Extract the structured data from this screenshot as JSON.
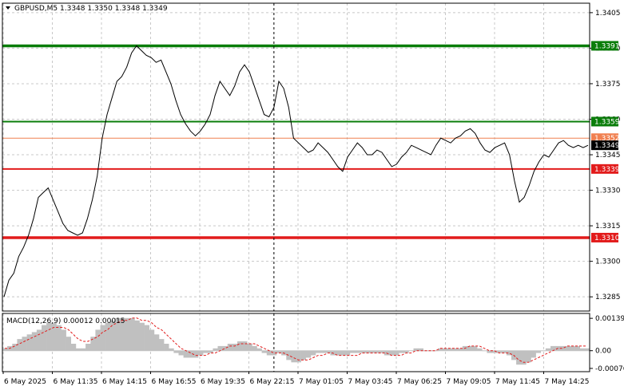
{
  "chart_data": [
    {
      "type": "line",
      "title": "GBPUSD,M5  1.3348 1.3350 1.3348 1.3349",
      "y_ticks": [
        "1.3405",
        "1.3390",
        "1.3375",
        "1.3360",
        "1.3345",
        "1.3330",
        "1.3315",
        "1.3300",
        "1.3285"
      ],
      "ylim": [
        1.3279,
        1.3409
      ],
      "x_ticks": [
        "6 May 2025",
        "6 May 11:35",
        "6 May 14:15",
        "6 May 16:55",
        "6 May 19:35",
        "6 May 22:15",
        "7 May 01:05",
        "7 May 03:45",
        "7 May 06:25",
        "7 May 09:05",
        "7 May 11:45",
        "7 May 14:25"
      ],
      "x_count": 120,
      "series": [
        {
          "values": [
            1.3285,
            1.3292,
            1.3295,
            1.3302,
            1.3306,
            1.3311,
            1.3318,
            1.3327,
            1.3329,
            1.3331,
            1.3326,
            1.3321,
            1.3316,
            1.3313,
            1.3312,
            1.3311,
            1.3312,
            1.3318,
            1.3326,
            1.3336,
            1.3352,
            1.3362,
            1.3369,
            1.3376,
            1.3378,
            1.3382,
            1.3388,
            1.3391,
            1.3389,
            1.3387,
            1.3386,
            1.3384,
            1.3385,
            1.338,
            1.3375,
            1.3368,
            1.3362,
            1.3358,
            1.3355,
            1.3353,
            1.3355,
            1.3358,
            1.3362,
            1.337,
            1.3376,
            1.3373,
            1.337,
            1.3374,
            1.338,
            1.3383,
            1.338,
            1.3374,
            1.3368,
            1.3362,
            1.3361,
            1.3365,
            1.3376,
            1.3373,
            1.3365,
            1.3352,
            1.335,
            1.3348,
            1.3346,
            1.3347,
            1.335,
            1.3348,
            1.3346,
            1.3343,
            1.334,
            1.3338,
            1.3344,
            1.3347,
            1.335,
            1.3348,
            1.3345,
            1.3345,
            1.3347,
            1.3346,
            1.3343,
            1.334,
            1.3341,
            1.3344,
            1.3346,
            1.3349,
            1.3348,
            1.3347,
            1.3346,
            1.3345,
            1.3349,
            1.3352,
            1.3351,
            1.335,
            1.3352,
            1.3353,
            1.3355,
            1.3356,
            1.3354,
            1.335,
            1.3347,
            1.3346,
            1.3348,
            1.3349,
            1.335,
            1.3345,
            1.3334,
            1.3325,
            1.3327,
            1.3332,
            1.3338,
            1.3342,
            1.3345,
            1.3344,
            1.3347,
            1.335,
            1.3351,
            1.3349,
            1.3348,
            1.3349,
            1.3348,
            1.3349
          ]
        }
      ],
      "levels": [
        {
          "value": 1.3391,
          "label": "1.3391",
          "color": "#0a7d0a"
        },
        {
          "value": 1.3359,
          "label": "1.3359",
          "color": "#0a7d0a"
        },
        {
          "value": 1.3352,
          "label": "1.3352",
          "color": "#f08050"
        },
        {
          "value": 1.3339,
          "label": "1.3339",
          "color": "#e21b1b"
        },
        {
          "value": 1.331,
          "label": "1.3310",
          "color": "#e21b1b"
        }
      ],
      "current_price": {
        "value": 1.3349,
        "label": "1.3349",
        "color": "#000000"
      },
      "vertical_marker_x_index": 55,
      "grid": true,
      "colors": {
        "price": "#000000",
        "grid": "#c8c8c8"
      }
    },
    {
      "type": "bar",
      "title": "MACD(12,26,9) 0.00012 0.00015",
      "y_ticks": [
        "0.00139",
        "0.00",
        "-0.00076"
      ],
      "ylim": [
        -0.0009,
        0.0016
      ],
      "histogram": [
        0.0001,
        0.0002,
        0.0003,
        0.0005,
        0.0006,
        0.0007,
        0.0008,
        0.0009,
        0.0011,
        0.0012,
        0.0012,
        0.0011,
        0.0009,
        0.0006,
        0.0003,
        0.0001,
        0.0001,
        0.0003,
        0.0006,
        0.0009,
        0.0011,
        0.0012,
        0.0013,
        0.0014,
        0.0014,
        0.0014,
        0.0014,
        0.0013,
        0.0012,
        0.0011,
        0.0009,
        0.0007,
        0.0005,
        0.0003,
        0.0001,
        -0.0001,
        -0.0002,
        -0.0003,
        -0.0003,
        -0.0003,
        -0.0002,
        -0.0001,
        -0.0001,
        0.0001,
        0.0002,
        0.0002,
        0.0003,
        0.0003,
        0.0004,
        0.0004,
        0.0003,
        0.0002,
        0.0001,
        -0.0001,
        -0.0002,
        -0.0002,
        -0.0001,
        -0.0002,
        -0.0004,
        -0.0005,
        -0.0005,
        -0.0004,
        -0.0003,
        -0.0002,
        -0.0001,
        -0.0001,
        -0.0001,
        -0.0002,
        -0.0002,
        -0.0002,
        -0.0002,
        -0.0001,
        -0.0001,
        -0.0001,
        -0.0001,
        -0.0001,
        -0.0001,
        -0.0001,
        -0.0002,
        -0.0002,
        -0.0002,
        -0.0001,
        -0.0001,
        0.0,
        0.0001,
        0.0001,
        0.0,
        0.0,
        0.0,
        0.0001,
        0.0001,
        0.0001,
        0.0001,
        0.0001,
        0.0002,
        0.0002,
        0.0002,
        0.0001,
        0.0,
        -0.0001,
        -0.0001,
        -0.0001,
        -0.0001,
        -0.0002,
        -0.0004,
        -0.0006,
        -0.0006,
        -0.0005,
        -0.0003,
        -0.0001,
        0.0,
        0.0001,
        0.0002,
        0.0002,
        0.0002,
        0.0002,
        0.0002,
        0.0002,
        0.0001,
        0.0001
      ],
      "signal": [
        0.0001,
        0.0001,
        0.0002,
        0.0003,
        0.0004,
        0.0005,
        0.0006,
        0.0007,
        0.0008,
        0.0009,
        0.001,
        0.001,
        0.001,
        0.0009,
        0.0007,
        0.0005,
        0.0004,
        0.0004,
        0.0005,
        0.0006,
        0.0008,
        0.0009,
        0.0011,
        0.0012,
        0.0013,
        0.0013,
        0.0014,
        0.0014,
        0.0013,
        0.0013,
        0.0012,
        0.001,
        0.0009,
        0.0007,
        0.0005,
        0.0003,
        0.0001,
        0.0,
        -0.0001,
        -0.0002,
        -0.0002,
        -0.0002,
        -0.0001,
        -0.0001,
        0.0,
        0.0001,
        0.0002,
        0.0002,
        0.0003,
        0.0003,
        0.0003,
        0.0003,
        0.0002,
        0.0001,
        0.0,
        -0.0001,
        -0.0001,
        -0.0001,
        -0.0002,
        -0.0003,
        -0.0004,
        -0.0004,
        -0.0004,
        -0.0003,
        -0.0002,
        -0.0002,
        -0.0001,
        -0.0001,
        -0.0002,
        -0.0002,
        -0.0002,
        -0.0002,
        -0.0002,
        -0.0001,
        -0.0001,
        -0.0001,
        -0.0001,
        -0.0001,
        -0.0001,
        -0.0002,
        -0.0002,
        -0.0002,
        -0.0001,
        -0.0001,
        0.0,
        0.0,
        0.0,
        0.0,
        0.0,
        0.0001,
        0.0001,
        0.0001,
        0.0001,
        0.0001,
        0.0001,
        0.0002,
        0.0002,
        0.0002,
        0.0001,
        0.0,
        0.0,
        -0.0001,
        -0.0001,
        -0.0001,
        -0.0002,
        -0.0004,
        -0.0005,
        -0.0005,
        -0.0004,
        -0.0003,
        -0.0002,
        -0.0001,
        0.0,
        0.0001,
        0.0001,
        0.0002,
        0.0002,
        0.0002,
        0.0002,
        0.0002
      ],
      "colors": {
        "histogram": "#c0c0c0",
        "signal": "#e21b1b"
      }
    }
  ]
}
